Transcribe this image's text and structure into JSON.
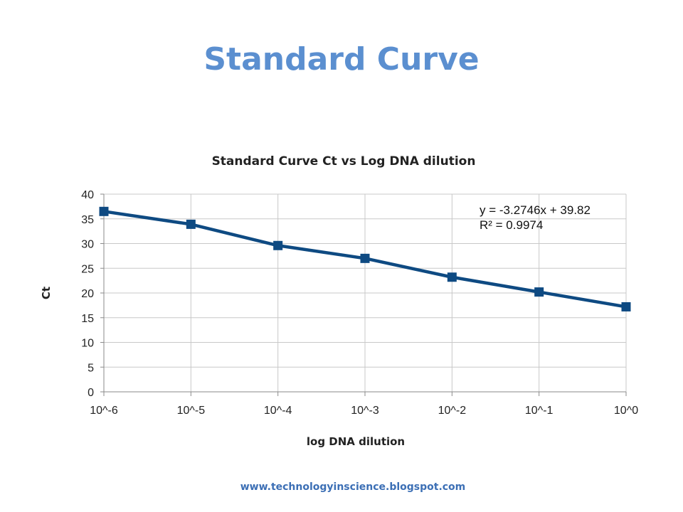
{
  "slide": {
    "title": "Standard Curve",
    "footer": "www.technologyinscience.blogspot.com"
  },
  "colors": {
    "title": "#5b8fd0",
    "series": "#0e4a82",
    "grid": "#c8c8c8",
    "footer": "#3c6fb5"
  },
  "chart_data": {
    "type": "line",
    "title": "Standard Curve Ct vs Log DNA dilution",
    "xlabel": "log DNA  dilution",
    "ylabel": "Ct",
    "categories": [
      "10^-6",
      "10^-5",
      "10^-4",
      "10^-3",
      "10^-2",
      "10^-1",
      "10^0"
    ],
    "series": [
      {
        "values": [
          36.5,
          33.9,
          29.6,
          27.0,
          23.2,
          20.2,
          17.2
        ],
        "marker": "square"
      }
    ],
    "ylim": [
      0,
      40
    ],
    "yticks": [
      0,
      5,
      10,
      15,
      20,
      25,
      30,
      35,
      40
    ],
    "grid": true,
    "legend": "none",
    "trendline": {
      "equation": "y = -3.2746x + 39.82",
      "r_squared": "R² = 0.9974"
    }
  }
}
